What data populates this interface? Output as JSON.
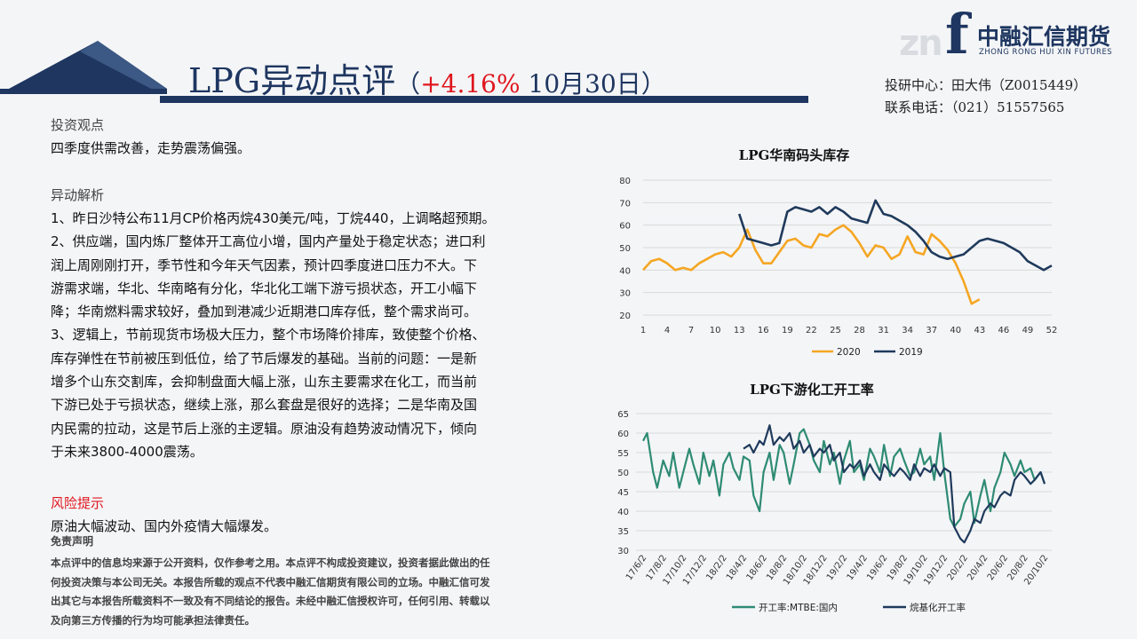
{
  "header": {
    "title_main": "LPG异动点评",
    "paren_open": "（",
    "change": "+4.16%",
    "date": " 10月30日）",
    "contact_line1": "投研中心：田大伟（Z0015449）",
    "contact_line2": "联系电话：（021）51557565"
  },
  "logo": {
    "mark_zn": "zn",
    "mark_f": "f",
    "name_cn": "中融汇信期货",
    "name_en": "ZHONG RONG HUI XIN FUTURES"
  },
  "colors": {
    "navy": "#1e3660",
    "red": "#e0161e",
    "orange": "#f5a623",
    "teal": "#2e8b74",
    "series2019": "#1f3a5c"
  },
  "view_heading": "投资观点",
  "view_text": "四季度供需改善，走势震荡偏强。",
  "analysis_heading": "异动解析",
  "analysis_lines": [
    "1、昨日沙特公布11月CP价格丙烷430美元/吨，丁烷440，上调略超预期。",
    "2、供应端，国内炼厂整体开工高位小增，国内产量处于稳定状态；进口利",
    "润上周刚刚打开，季节性和今年天气因素，预计四季度进口压力不大。下",
    "游需求端，华北、华南略有分化，华北化工端下游亏损状态，开工小幅下",
    "降；华南燃料需求较好，叠加到港减少近期港口库存低，整个需求尚可。",
    "3、逻辑上，节前现货市场极大压力，整个市场降价排库，致使整个价格、",
    "库存弹性在节前被压到低位，给了节后爆发的基础。当前的问题：一是新",
    "增多个山东交割库，会抑制盘面大幅上涨，山东主要需求在化工，而当前",
    "下游已处于亏损状态，继续上涨，那么套盘是很好的选择；二是华南及国",
    "内民需的拉动，这是节后上涨的主逻辑。原油没有趋势波动情况下，倾向",
    "于未来3800-4000震荡。"
  ],
  "risk_heading": "风险提示",
  "risk_text": "原油大幅波动、国内外疫情大幅爆发。",
  "disclaimer_heading": "免责声明",
  "disclaimer_lines": [
    "本点评中的信息均来源于公开资料，仅作参考之用。本点评不构成投资建议，投资者据此做出的任",
    "何投资决策与本公司无关。本报告所载的观点不代表中融汇信期货有限公司的立场。中融汇信可发",
    "出其它与本报告所载资料不一致及有不同结论的报告。未经中融汇信授权许可，任何引用、转载以",
    "及向第三方传播的行为均可能承担法律责任。"
  ],
  "chart_data": [
    {
      "type": "line",
      "title": "LPG华南码头库存",
      "xlim": [
        1,
        52
      ],
      "ylim": [
        20,
        80
      ],
      "yticks": [
        20,
        30,
        40,
        50,
        60,
        70,
        80
      ],
      "xticks": [
        1,
        4,
        7,
        10,
        13,
        16,
        19,
        22,
        25,
        28,
        31,
        34,
        37,
        40,
        43,
        46,
        49,
        52
      ],
      "grid": true,
      "legend": "bottom",
      "series": [
        {
          "name": "2020",
          "color": "#f5a623",
          "x": [
            1,
            2,
            3,
            4,
            5,
            6,
            7,
            8,
            9,
            10,
            11,
            12,
            13,
            14,
            15,
            16,
            17,
            18,
            19,
            20,
            21,
            22,
            23,
            24,
            25,
            26,
            27,
            28,
            29,
            30,
            31,
            32,
            33,
            34,
            35,
            36,
            37,
            38,
            39,
            40,
            41,
            42,
            43
          ],
          "y": [
            40,
            44,
            45,
            43,
            40,
            41,
            40,
            43,
            45,
            47,
            48,
            46,
            50,
            58,
            49,
            43,
            43,
            48,
            53,
            54,
            51,
            50,
            56,
            55,
            58,
            60,
            57,
            52,
            46,
            51,
            50,
            45,
            47,
            55,
            48,
            47,
            56,
            53,
            49,
            43,
            35,
            25,
            27
          ]
        },
        {
          "name": "2019",
          "color": "#1f3a5c",
          "x": [
            13,
            14,
            15,
            16,
            17,
            18,
            19,
            20,
            21,
            22,
            23,
            24,
            25,
            26,
            27,
            28,
            29,
            30,
            31,
            32,
            33,
            34,
            35,
            36,
            37,
            38,
            39,
            40,
            41,
            42,
            43,
            44,
            45,
            46,
            47,
            48,
            49,
            50,
            51,
            52
          ],
          "y": [
            65,
            54,
            53,
            52,
            51,
            52,
            66,
            68,
            67,
            66,
            68,
            65,
            68,
            66,
            63,
            62,
            61,
            71,
            65,
            64,
            62,
            60,
            57,
            53,
            48,
            46,
            45,
            46,
            47,
            50,
            53,
            54,
            53,
            52,
            50,
            48,
            44,
            42,
            40,
            42
          ]
        }
      ]
    },
    {
      "type": "line",
      "title": "LPG下游化工开工率",
      "ylim": [
        30,
        65
      ],
      "yticks": [
        30,
        35,
        40,
        45,
        50,
        55,
        60,
        65
      ],
      "xticks": [
        "17/6/2",
        "17/8/2",
        "17/10/2",
        "17/12/2",
        "18/2/2",
        "18/4/2",
        "18/6/2",
        "18/8/2",
        "18/10/2",
        "18/12/2",
        "19/2/2",
        "19/4/2",
        "19/6/2",
        "19/8/2",
        "19/10/2",
        "19/12/2",
        "20/2/2",
        "20/4/2",
        "20/6/2",
        "20/8/2",
        "20/10/2"
      ],
      "grid": true,
      "legend": "bottom",
      "series": [
        {
          "name": "开工率:MTBE:国内",
          "color": "#2e8b74",
          "x": [
            0.0,
            0.2,
            0.5,
            0.7,
            1.0,
            1.3,
            1.5,
            1.8,
            2.0,
            2.3,
            2.5,
            2.8,
            3.0,
            3.3,
            3.5,
            3.8,
            4.0,
            4.3,
            4.5,
            4.8,
            5.0,
            5.3,
            5.5,
            5.8,
            6.0,
            6.3,
            6.5,
            6.8,
            7.0,
            7.3,
            7.5,
            7.8,
            8.0,
            8.3,
            8.5,
            8.8,
            9.0,
            9.3,
            9.5,
            9.8,
            10.0,
            10.3,
            10.5,
            10.8,
            11.0,
            11.3,
            11.5,
            11.8,
            12.0,
            12.3,
            12.5,
            12.8,
            13.0,
            13.3,
            13.5,
            13.8,
            14.0,
            14.3,
            14.5,
            14.8,
            15.0,
            15.3,
            15.5,
            15.8,
            16.0,
            16.3,
            16.5,
            16.8,
            17.0,
            17.3,
            17.5,
            17.8,
            18.0,
            18.3,
            18.5,
            18.8,
            19.0,
            19.3,
            19.5,
            19.8,
            20.0
          ],
          "y": [
            58,
            60,
            50,
            46,
            53,
            49,
            55,
            46,
            50,
            56,
            52,
            47,
            55,
            49,
            53,
            44,
            52,
            55,
            51,
            48,
            54,
            53,
            44,
            40,
            50,
            55,
            48,
            57,
            55,
            47,
            52,
            60,
            61,
            57,
            53,
            50,
            58,
            52,
            55,
            47,
            53,
            58,
            50,
            52,
            48,
            56,
            54,
            50,
            57,
            49,
            54,
            56,
            53,
            49,
            50,
            56,
            52,
            54,
            48,
            60,
            50,
            38,
            36,
            38,
            42,
            45,
            37,
            44,
            48,
            40,
            46,
            50,
            55,
            52,
            49,
            53,
            50,
            51,
            48,
            50,
            47
          ]
        },
        {
          "name": "烷基化开工率",
          "color": "#1f3a5c",
          "x": [
            5.0,
            5.3,
            5.5,
            5.8,
            6.0,
            6.3,
            6.5,
            6.8,
            7.0,
            7.3,
            7.5,
            7.8,
            8.0,
            8.3,
            8.5,
            8.8,
            9.0,
            9.3,
            9.5,
            9.8,
            10.0,
            10.3,
            10.5,
            10.8,
            11.0,
            11.3,
            11.5,
            11.8,
            12.0,
            12.3,
            12.5,
            12.8,
            13.0,
            13.3,
            13.5,
            13.8,
            14.0,
            14.3,
            14.5,
            14.8,
            15.0,
            15.3,
            15.5,
            15.8,
            16.0,
            16.3,
            16.5,
            16.8,
            17.0,
            17.3,
            17.5,
            17.8,
            18.0,
            18.3,
            18.5,
            18.8,
            19.0,
            19.3,
            19.5,
            19.8,
            20.0
          ],
          "y": [
            56,
            57,
            55,
            58,
            57,
            62,
            57,
            59,
            58,
            60,
            56,
            58,
            55,
            57,
            54,
            56,
            55,
            57,
            53,
            55,
            50,
            52,
            51,
            53,
            49,
            52,
            50,
            48,
            52,
            50,
            49,
            51,
            50,
            48,
            52,
            49,
            51,
            50,
            52,
            49,
            51,
            50,
            36,
            33,
            32,
            35,
            38,
            37,
            40,
            42,
            41,
            44,
            45,
            44,
            48,
            50,
            49,
            47,
            48,
            50,
            47
          ]
        }
      ]
    }
  ]
}
